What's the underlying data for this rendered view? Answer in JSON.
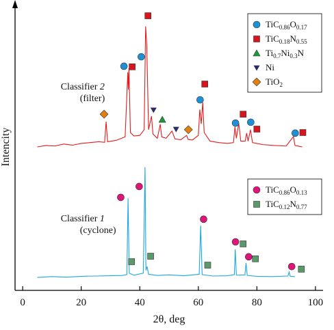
{
  "chart_data": {
    "type": "line",
    "x_label": "2θ, deg",
    "y_label": "Intencity",
    "xlim": [
      -2.6,
      102.6
    ],
    "ylim": [
      0,
      100
    ],
    "xticks": [
      0,
      20,
      40,
      60,
      80,
      100
    ],
    "annotations": [
      {
        "lines": [
          "Classifier 2",
          "(filter)"
        ],
        "x": 13,
        "y": 70
      },
      {
        "lines": [
          "Classifier 1",
          "(cyclone)"
        ],
        "x": 13,
        "y": 24
      }
    ],
    "legends": [
      {
        "entries": [
          {
            "name": "TiC0.86O0.17",
            "color": "#1e90d6",
            "shape": "circle"
          },
          {
            "name": "TiC0.18N0.55",
            "color": "#d8141c",
            "shape": "square"
          },
          {
            "name": "Ti0.7Ni0.3N",
            "color": "#1a9a3a",
            "shape": "triangle"
          },
          {
            "name": "Ni",
            "color": "#2a2a7a",
            "shape": "triangle-down"
          },
          {
            "name": "TiO2",
            "color": "#e08010",
            "shape": "diamond"
          }
        ]
      },
      {
        "entries": [
          {
            "name": "TiC0.86O0.13",
            "color": "#e0157a",
            "shape": "circle"
          },
          {
            "name": "TiC0.12N0.77",
            "color": "#5a9a6a",
            "shape": "square"
          }
        ]
      }
    ],
    "series": [
      {
        "color": "#e41a1c",
        "legend": 0,
        "x": [
          5,
          8,
          11,
          14,
          17,
          20,
          23,
          26,
          28,
          28.5,
          29,
          32,
          35,
          35.9,
          36.1,
          36.3,
          36.8,
          38,
          40,
          41.5,
          42,
          42.4,
          43,
          44,
          44.5,
          46,
          47,
          47.5,
          49,
          51,
          52,
          54,
          56,
          56.5,
          58,
          60,
          60.5,
          61,
          61.5,
          62,
          64,
          67,
          70,
          72,
          72.5,
          73,
          73.8,
          74.5,
          76,
          76.5,
          77,
          77.8,
          78.5,
          82,
          86,
          90,
          92.5,
          93,
          94.5,
          95.5
        ],
        "values": [
          50,
          50.5,
          50.3,
          51,
          50.6,
          51.2,
          51.5,
          51.8,
          51.6,
          58.8,
          51.8,
          52.3,
          53.5,
          76,
          70,
          77.4,
          55,
          53.8,
          54,
          56,
          92,
          85,
          56,
          60.7,
          54.5,
          53,
          57.9,
          53.5,
          53,
          55.5,
          52.8,
          52.5,
          54,
          52.6,
          52.4,
          54,
          63,
          58,
          65.5,
          55,
          52,
          51.5,
          51.2,
          51.5,
          57,
          53,
          58.3,
          52,
          52,
          54.8,
          52,
          56,
          51.5,
          50.8,
          50.5,
          50.3,
          53.6,
          50.5,
          50.2,
          50
        ],
        "markers": [
          {
            "phase": 4,
            "x": 27.8,
            "y": 61.4
          },
          {
            "phase": 4,
            "x": 56.6,
            "y": 56
          },
          {
            "phase": 0,
            "x": 34.6,
            "y": 78.1
          },
          {
            "phase": 0,
            "x": 40.5,
            "y": 81.4
          },
          {
            "phase": 0,
            "x": 60.6,
            "y": 66.4
          },
          {
            "phase": 0,
            "x": 72.7,
            "y": 58.3
          },
          {
            "phase": 0,
            "x": 77.9,
            "y": 58.6
          },
          {
            "phase": 0,
            "x": 93.1,
            "y": 54.8
          },
          {
            "phase": 1,
            "x": 37.4,
            "y": 77.9
          },
          {
            "phase": 1,
            "x": 42.8,
            "y": 95.7
          },
          {
            "phase": 1,
            "x": 62.2,
            "y": 71.9
          },
          {
            "phase": 1,
            "x": 75.3,
            "y": 61.4
          },
          {
            "phase": 1,
            "x": 80,
            "y": 56.2
          },
          {
            "phase": 1,
            "x": 95.7,
            "y": 55
          },
          {
            "phase": 2,
            "x": 47.7,
            "y": 59.5
          },
          {
            "phase": 3,
            "x": 44.7,
            "y": 62.9
          },
          {
            "phase": 3,
            "x": 52.4,
            "y": 56.2
          }
        ]
      },
      {
        "color": "#1ea7e0",
        "legend": 1,
        "x": [
          5,
          10,
          15,
          20,
          25,
          30,
          34,
          35.6,
          36,
          36.4,
          38,
          41.2,
          41.8,
          42.1,
          42.5,
          43,
          46,
          50,
          55,
          60.3,
          60.8,
          61.3,
          65,
          70,
          72.3,
          72.6,
          73,
          75.9,
          76.3,
          76.7,
          80,
          85,
          90.6,
          91,
          91.4,
          93
        ],
        "values": [
          4.5,
          4.8,
          4.6,
          4.9,
          5,
          5.1,
          5.2,
          5.5,
          32.1,
          6,
          5.3,
          6,
          42.9,
          7,
          8.3,
          5.6,
          5.2,
          5.4,
          5.1,
          5.6,
          22.6,
          5.5,
          5,
          5.1,
          5.5,
          14.3,
          5.3,
          5.4,
          9.5,
          5.2,
          4.9,
          4.8,
          5,
          6.4,
          4.9,
          4.8
        ],
        "markers": [
          {
            "phase": 0,
            "x": 33.5,
            "y": 32.4
          },
          {
            "phase": 0,
            "x": 39.8,
            "y": 36.2
          },
          {
            "phase": 0,
            "x": 61.8,
            "y": 24.8
          },
          {
            "phase": 0,
            "x": 72.7,
            "y": 16.9
          },
          {
            "phase": 0,
            "x": 77.2,
            "y": 11.7
          },
          {
            "phase": 0,
            "x": 91.9,
            "y": 8.3
          },
          {
            "phase": 1,
            "x": 37.2,
            "y": 10
          },
          {
            "phase": 1,
            "x": 43.7,
            "y": 11.9
          },
          {
            "phase": 1,
            "x": 63.2,
            "y": 8.8
          },
          {
            "phase": 1,
            "x": 75.3,
            "y": 16.2
          },
          {
            "phase": 1,
            "x": 79.5,
            "y": 11
          },
          {
            "phase": 1,
            "x": 95.2,
            "y": 7.4
          }
        ]
      }
    ]
  }
}
